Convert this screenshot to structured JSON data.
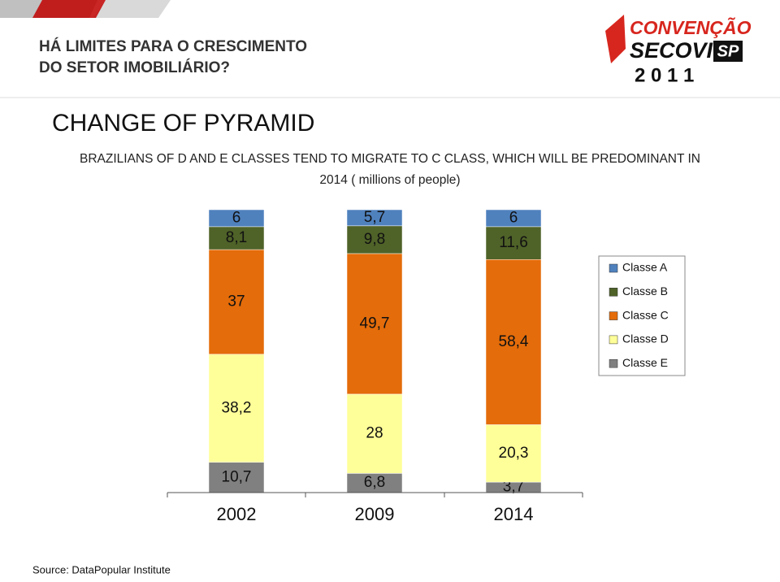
{
  "header": {
    "line1": "HÁ LIMITES PARA O CRESCIMENTO",
    "line2": "DO SETOR IMOBILIÁRIO?"
  },
  "logo": {
    "line1": "CONVENÇÃO",
    "line2": "SECOVI",
    "badge": "SP",
    "year": "2 0 1 1"
  },
  "chart_data": {
    "type": "stacked-bar",
    "title": "CHANGE OF PYRAMID",
    "subtitle": [
      "BRAZILIANS OF D AND E CLASSES TEND TO MIGRATE TO C CLASS, WHICH WILL BE PREDOMINANT IN",
      "2014 ( millions of people)"
    ],
    "categories": [
      "2002",
      "2009",
      "2014"
    ],
    "series": [
      {
        "name": "Classe E",
        "color": "#808080",
        "values": [
          10.7,
          6.8,
          3.7
        ],
        "value_labels": [
          "10,7",
          "6,8",
          "3,7"
        ]
      },
      {
        "name": "Classe D",
        "color": "#ffff99",
        "values": [
          38.2,
          28,
          20.3
        ],
        "value_labels": [
          "38,2",
          "28",
          "20,3"
        ]
      },
      {
        "name": "Classe C",
        "color": "#e46c0a",
        "values": [
          37,
          49.7,
          58.4
        ],
        "value_labels": [
          "37",
          "49,7",
          "58,4"
        ]
      },
      {
        "name": "Classe B",
        "color": "#4f6228",
        "values": [
          8.1,
          9.8,
          11.6
        ],
        "value_labels": [
          "8,1",
          "9,8",
          "11,6"
        ]
      },
      {
        "name": "Classe A",
        "color": "#4f81bd",
        "values": [
          6,
          5.7,
          6
        ],
        "value_labels": [
          "6",
          "5,7",
          "6"
        ]
      }
    ],
    "ylim": [
      0,
      100
    ],
    "legend": "right",
    "source": "Source: DataPopular Institute"
  }
}
